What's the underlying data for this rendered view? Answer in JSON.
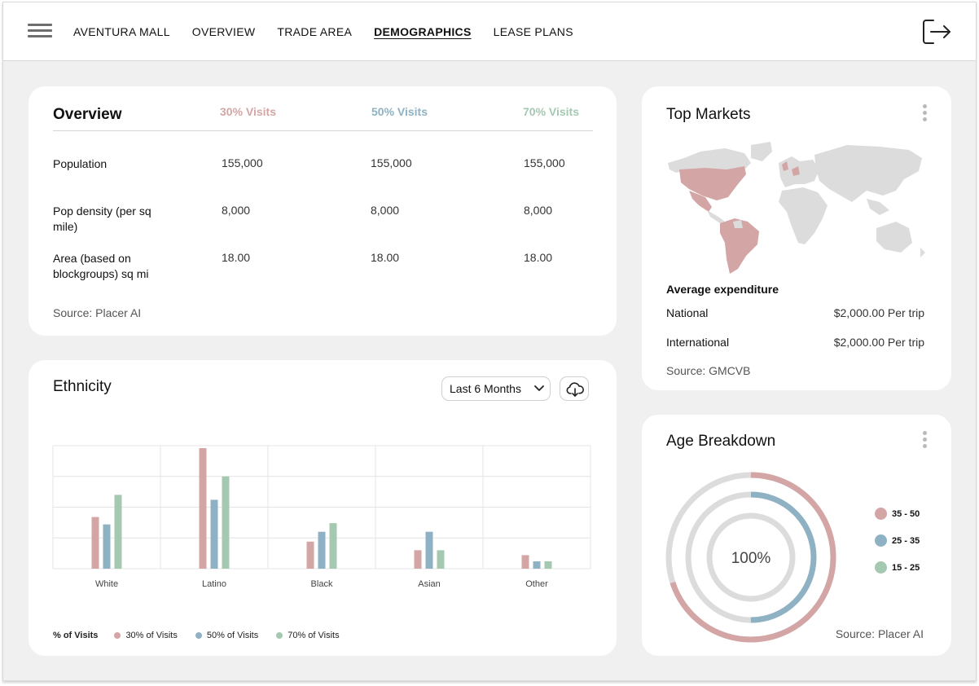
{
  "colors": {
    "visits30": "#d4a5a5",
    "visits50": "#8eb2c3",
    "visits70": "#a5c9b0",
    "map_highlight": "#d4a5a5",
    "map_base": "#dcdcdc"
  },
  "header": {
    "menu_icon": "hamburger-menu-icon",
    "nav": [
      {
        "label": "AVENTURA MALL",
        "active": false
      },
      {
        "label": "OVERVIEW",
        "active": false
      },
      {
        "label": "TRADE AREA",
        "active": false
      },
      {
        "label": "DEMOGRAPHICS",
        "active": true
      },
      {
        "label": "LEASE PLANS",
        "active": false
      }
    ],
    "logout_icon": "logout-icon"
  },
  "overview": {
    "title": "Overview",
    "columns": [
      "30% Visits",
      "50% Visits",
      "70% Visits"
    ],
    "rows": [
      {
        "label": "Population",
        "values": [
          "155,000",
          "155,000",
          "155,000"
        ]
      },
      {
        "label": "Pop density (per sq mile)",
        "values": [
          "8,000",
          "8,000",
          "8,000"
        ]
      },
      {
        "label": "Area (based on blockgroups) sq mi",
        "values": [
          "18.00",
          "18.00",
          "18.00"
        ]
      }
    ],
    "source": "Source: Placer AI"
  },
  "top_markets": {
    "title": "Top Markets",
    "menu_icon": "kebab-menu-icon",
    "avg_heading": "Average expenditure",
    "rows": [
      {
        "label": "National",
        "value": "$2,000.00 Per trip"
      },
      {
        "label": "International",
        "value": "$2,000.00 Per trip"
      }
    ],
    "source": "Source: GMCVB"
  },
  "ethnicity": {
    "title": "Ethnicity",
    "period_select": "Last 6 Months",
    "chevron_icon": "chevron-down-icon",
    "download_icon": "cloud-download-icon",
    "legend_title": "% of Visits",
    "legend": [
      "30% of Visits",
      "50% of Visits",
      "70% of Visits"
    ]
  },
  "chart_data": {
    "type": "bar",
    "categories": [
      "White",
      "Latino",
      "Black",
      "Asian",
      "Other"
    ],
    "series": [
      {
        "name": "30% of Visits",
        "values": [
          42,
          98,
          22,
          15,
          11
        ]
      },
      {
        "name": "50% of Visits",
        "values": [
          36,
          56,
          30,
          30,
          6
        ]
      },
      {
        "name": "70% of Visits",
        "values": [
          60,
          75,
          37,
          15,
          6
        ]
      }
    ],
    "ylim": [
      0,
      100
    ],
    "grid": true,
    "legend_position": "bottom-left"
  },
  "age": {
    "title": "Age Breakdown",
    "menu_icon": "kebab-menu-icon",
    "center_label": "100%",
    "legend": [
      "35 - 50",
      "25 - 35",
      "15 - 25"
    ],
    "ring_fractions": [
      0.7,
      0.5,
      0.0
    ],
    "source": "Source: Placer AI"
  }
}
